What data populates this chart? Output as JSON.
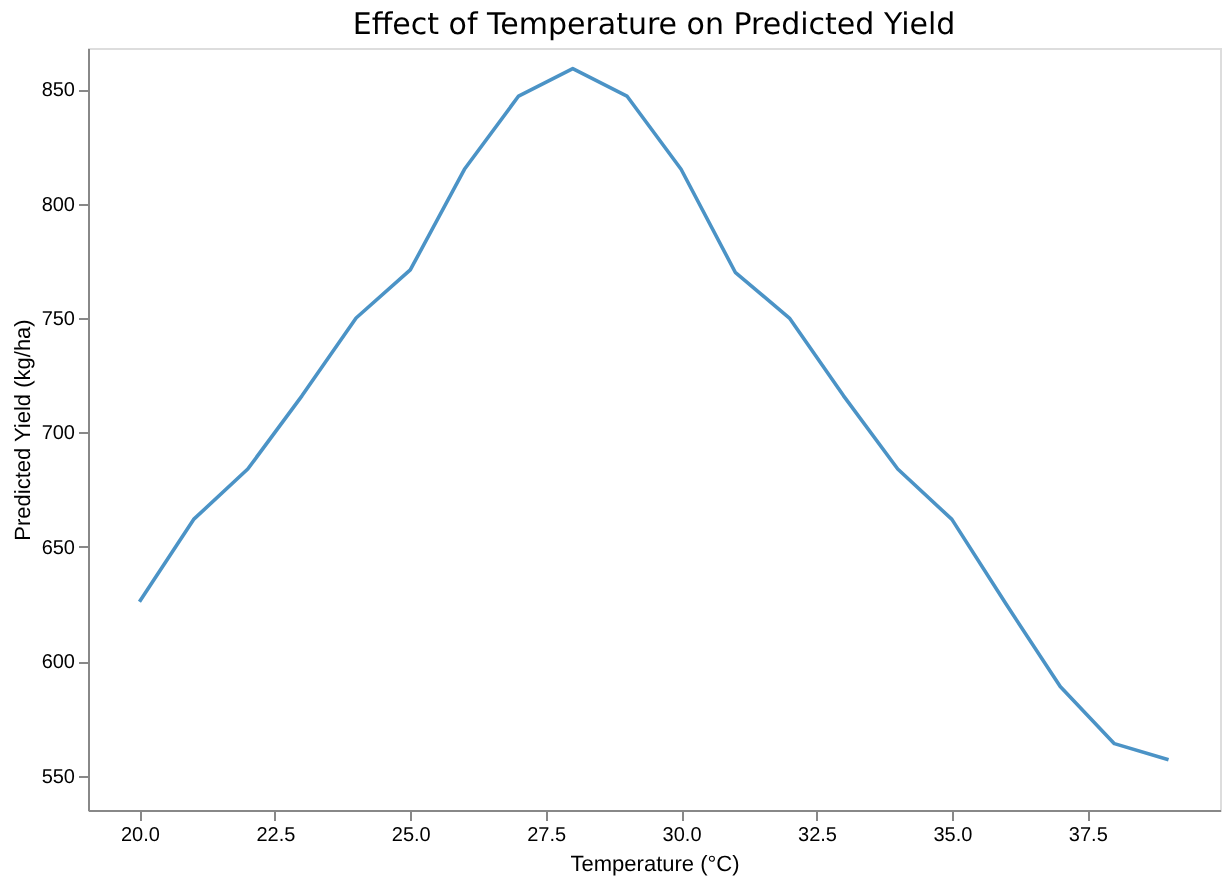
{
  "chart_data": {
    "type": "line",
    "title": "Effect of Temperature on Predicted Yield",
    "xlabel": "Temperature (°C)",
    "ylabel": "Predicted Yield (kg/ha)",
    "x": [
      20,
      21,
      22,
      23,
      24,
      25,
      26,
      27,
      28,
      29,
      30,
      31,
      32,
      33,
      34,
      35,
      36,
      37,
      38,
      39
    ],
    "series": [
      {
        "color": "#4b93c6",
        "values": [
          626,
          662,
          684,
          716,
          750,
          771,
          815,
          847,
          859,
          847,
          815,
          770,
          750,
          716,
          684,
          662,
          625,
          589,
          564,
          557
        ]
      }
    ],
    "xlim": [
      19.05,
      39.95
    ],
    "ylim": [
      535,
      868
    ],
    "xticks": [
      {
        "value": 20,
        "label": "20.0"
      },
      {
        "value": 22.5,
        "label": "22.5"
      },
      {
        "value": 25,
        "label": "25.0"
      },
      {
        "value": 27.5,
        "label": "27.5"
      },
      {
        "value": 30,
        "label": "30.0"
      },
      {
        "value": 32.5,
        "label": "32.5"
      },
      {
        "value": 35,
        "label": "35.0"
      },
      {
        "value": 37.5,
        "label": "37.5"
      }
    ],
    "yticks": [
      550,
      600,
      650,
      700,
      750,
      800,
      850
    ],
    "grid": false
  }
}
